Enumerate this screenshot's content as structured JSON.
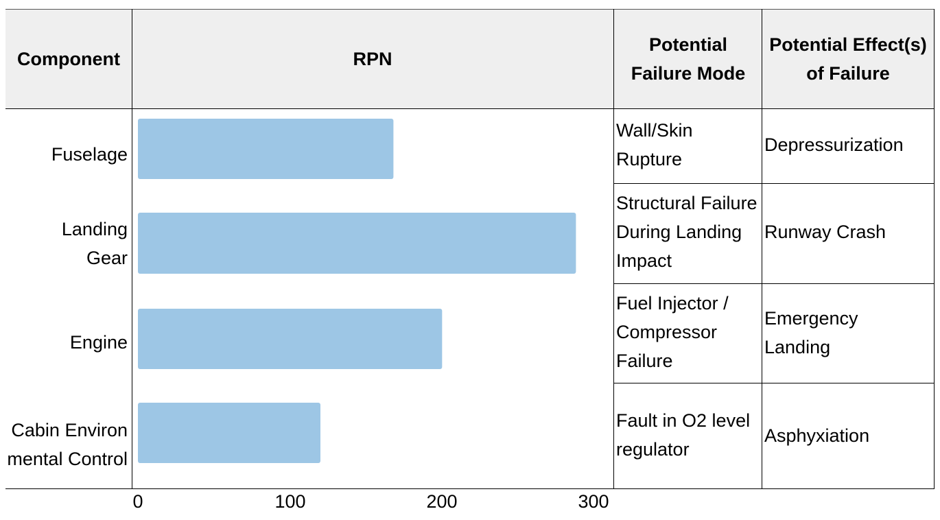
{
  "headers": {
    "component": "Component",
    "rpn": "RPN",
    "failure_mode": "Potential Failure Mode",
    "effects": "Potential Effect(s) of Failure"
  },
  "rows": [
    {
      "component": "Fuselage",
      "failure_mode": "Wall/Skin Rupture",
      "effect": "Depressurization"
    },
    {
      "component": "Landing Gear",
      "failure_mode": "Structural Failure During Landing Impact",
      "effect": "Runway Crash"
    },
    {
      "component": "Engine",
      "failure_mode": "Fuel Injector / Compressor Failure",
      "effect": "Emergency Landing"
    },
    {
      "component": "Cabin Environmental Control",
      "failure_mode": "Fault in O2 level regulator",
      "effect": "Asphyxiation"
    }
  ],
  "colors": {
    "bar": "#9dc6e5",
    "header_bg": "#efefef"
  },
  "chart_data": {
    "type": "bar",
    "orientation": "horizontal",
    "categories": [
      "Fuselage",
      "Landing Gear",
      "Engine",
      "Cabin Environmental Control"
    ],
    "values": [
      168,
      288,
      200,
      120
    ],
    "xlabel": "",
    "ylabel": "",
    "xlim": [
      0,
      300
    ],
    "x_ticks": [
      "0",
      "100",
      "200",
      "300"
    ],
    "grid": false
  }
}
